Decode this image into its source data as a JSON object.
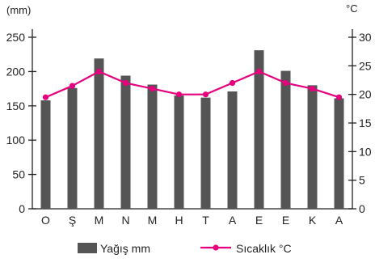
{
  "chart_data": {
    "type": "bar",
    "categories": [
      "O",
      "Ş",
      "M",
      "N",
      "M",
      "H",
      "T",
      "A",
      "E",
      "E",
      "K",
      "A"
    ],
    "series": [
      {
        "name": "Yağış mm",
        "kind": "bar",
        "axis": "left",
        "color": "#555555",
        "values": [
          158,
          176,
          219,
          194,
          181,
          165,
          162,
          171,
          231,
          201,
          180,
          161
        ]
      },
      {
        "name": "Sıcaklık °C",
        "kind": "line",
        "axis": "right",
        "color": "#e6007e",
        "values": [
          19.5,
          21.5,
          24,
          22,
          21,
          20,
          20,
          22,
          24,
          22,
          21,
          19.5
        ]
      }
    ],
    "left_axis": {
      "unit": "(mm)",
      "ylim": [
        0,
        250
      ],
      "ticks": [
        0,
        50,
        100,
        150,
        200,
        250
      ]
    },
    "right_axis": {
      "unit": "°C",
      "ylim": [
        0,
        30
      ],
      "ticks": [
        0,
        5,
        10,
        15,
        20,
        25,
        30
      ]
    },
    "grid": false,
    "legend_position": "bottom"
  }
}
